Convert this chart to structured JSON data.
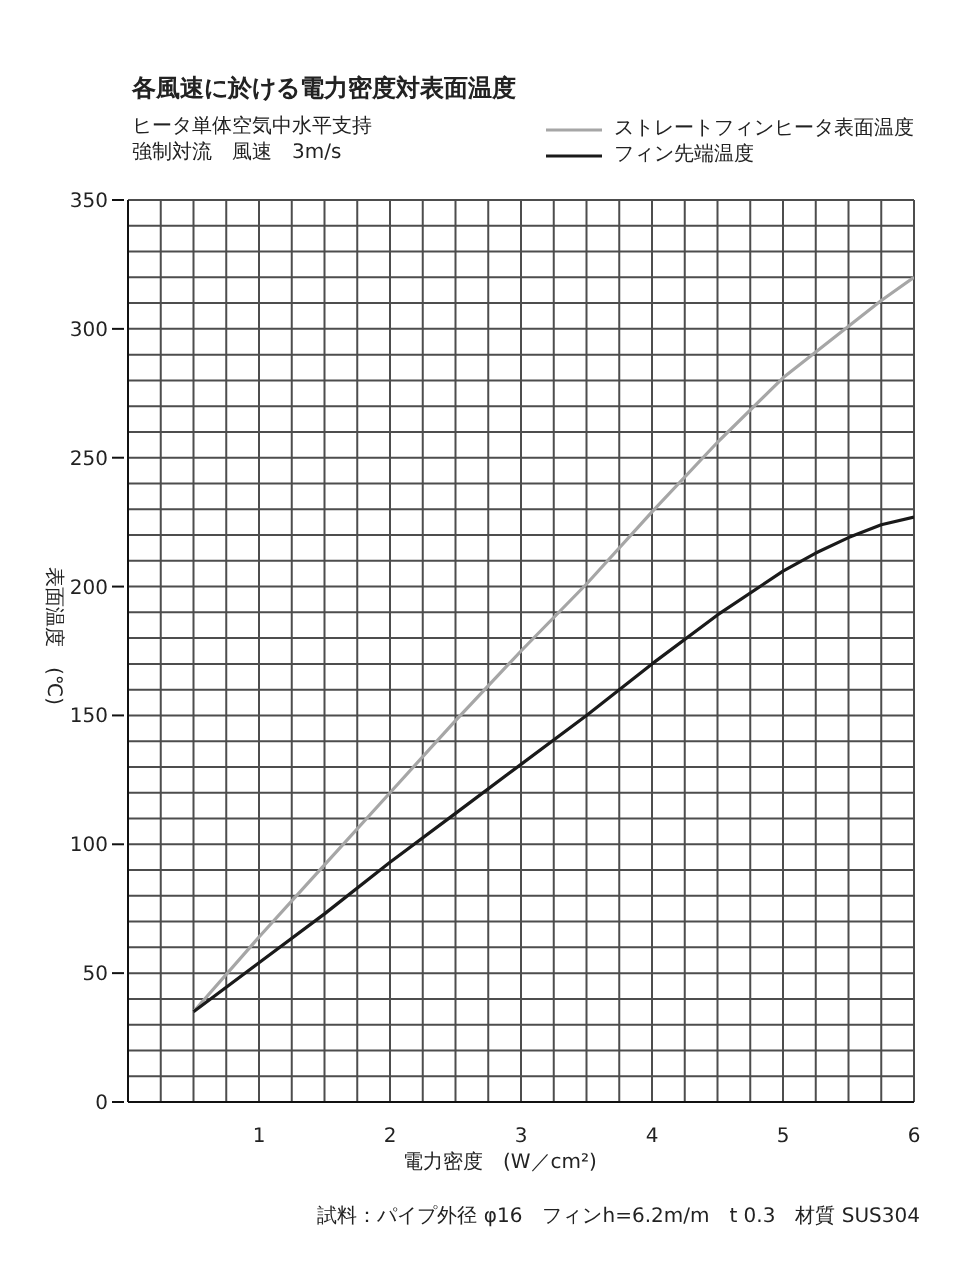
{
  "chart_data": {
    "type": "line",
    "title": "各風速に於ける電力密度対表面温度",
    "subtitle": "ヒータ単体空気中水平支持強制対流　風速　3m/s",
    "xlabel": "電力密度　(W／cm²)",
    "ylabel": "表面温度　(℃)",
    "annotations": [
      "試料：パイプ外径 φ16　フィンh=6.2m/m　t 0.3　材質 SUS304"
    ],
    "x": [
      0.5,
      1,
      1.5,
      2,
      2.5,
      3,
      3.5,
      4,
      4.5,
      5,
      5.25,
      5.5,
      5.75,
      6
    ],
    "series": [
      {
        "name": "ストレートフィンヒータ表面温度",
        "color": "#a6a6a6",
        "values": [
          35,
          64,
          92,
          120,
          148,
          175,
          201,
          229,
          256,
          281,
          291,
          301,
          311,
          320
        ]
      },
      {
        "name": "フィン先端温度",
        "color": "#1a1a1a",
        "values": [
          35,
          54,
          73,
          93,
          112,
          131,
          150,
          170,
          189,
          206,
          213,
          219,
          224,
          227
        ]
      }
    ],
    "xlim": [
      0,
      6
    ],
    "ylim": [
      0,
      350
    ],
    "xticks": [
      {
        "value": 0,
        "label": null
      },
      {
        "value": 0.25,
        "label": null
      },
      {
        "value": 0.5,
        "label": null
      },
      {
        "value": 0.75,
        "label": null
      },
      1,
      {
        "value": 1.25,
        "label": null
      },
      {
        "value": 1.5,
        "label": null
      },
      {
        "value": 1.75,
        "label": null
      },
      2,
      {
        "value": 2.25,
        "label": null
      },
      {
        "value": 2.5,
        "label": null
      },
      {
        "value": 2.75,
        "label": null
      },
      3,
      {
        "value": 3.25,
        "label": null
      },
      {
        "value": 3.5,
        "label": null
      },
      {
        "value": 3.75,
        "label": null
      },
      4,
      {
        "value": 4.25,
        "label": null
      },
      {
        "value": 4.5,
        "label": null
      },
      {
        "value": 4.75,
        "label": null
      },
      5,
      {
        "value": 5.25,
        "label": null
      },
      {
        "value": 5.5,
        "label": null
      },
      {
        "value": 5.75,
        "label": null
      },
      6
    ],
    "yticks": [
      0,
      {
        "value": 10,
        "label": null
      },
      {
        "value": 20,
        "label": null
      },
      {
        "value": 30,
        "label": null
      },
      {
        "value": 40,
        "label": null
      },
      50,
      {
        "value": 60,
        "label": null
      },
      {
        "value": 70,
        "label": null
      },
      {
        "value": 80,
        "label": null
      },
      {
        "value": 90,
        "label": null
      },
      100,
      {
        "value": 110,
        "label": null
      },
      {
        "value": 120,
        "label": null
      },
      {
        "value": 130,
        "label": null
      },
      {
        "value": 140,
        "label": null
      },
      150,
      {
        "value": 160,
        "label": null
      },
      {
        "value": 170,
        "label": null
      },
      {
        "value": 180,
        "label": null
      },
      {
        "value": 190,
        "label": null
      },
      200,
      {
        "value": 210,
        "label": null
      },
      {
        "value": 220,
        "label": null
      },
      {
        "value": 230,
        "label": null
      },
      {
        "value": 240,
        "label": null
      },
      250,
      {
        "value": 260,
        "label": null
      },
      {
        "value": 270,
        "label": null
      },
      {
        "value": 280,
        "label": null
      },
      {
        "value": 290,
        "label": null
      },
      300,
      {
        "value": 310,
        "label": null
      },
      {
        "value": 320,
        "label": null
      },
      {
        "value": 330,
        "label": null
      },
      {
        "value": 340,
        "label": null
      },
      350
    ],
    "grid": true,
    "legend": "top right"
  }
}
